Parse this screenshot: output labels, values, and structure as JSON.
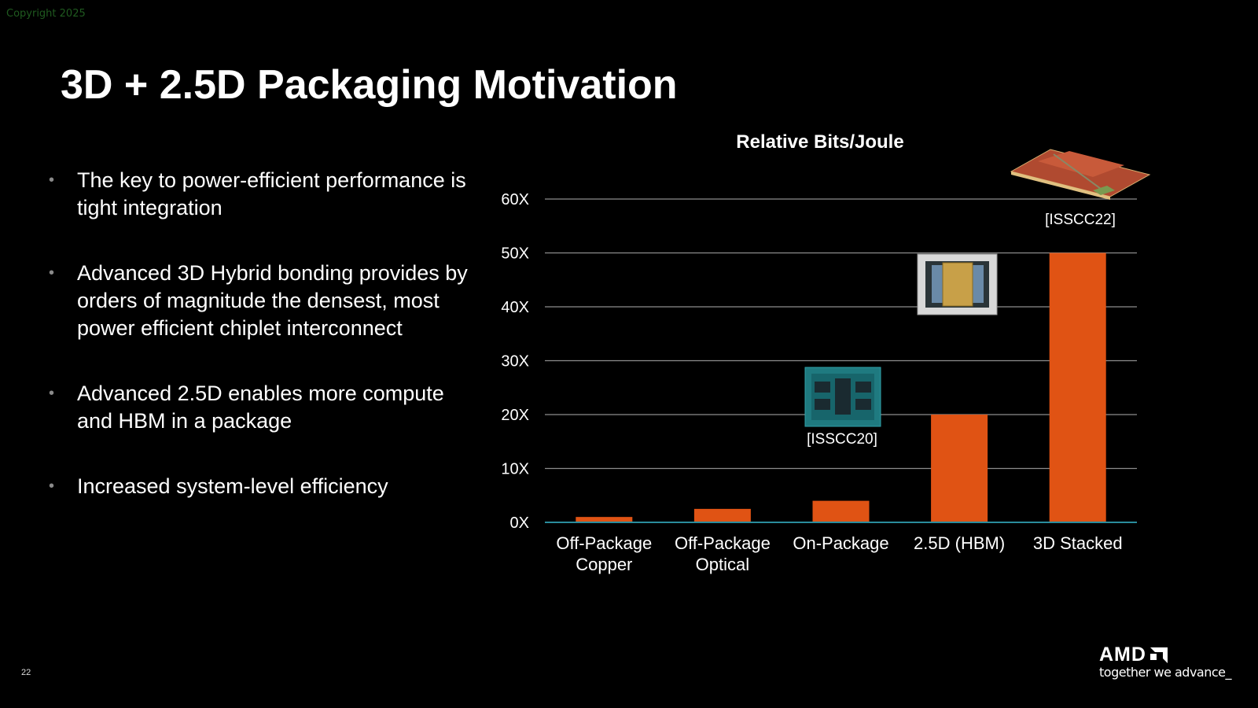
{
  "copyright": "Copyright 2025",
  "title": "3D + 2.5D Packaging Motivation",
  "bullets": [
    "The key to power-efficient performance is tight integration",
    "Advanced 3D Hybrid bonding provides by orders of magnitude the densest, most power efficient chiplet interconnect",
    "Advanced 2.5D enables more compute and HBM in a package",
    "Increased system-level efficiency"
  ],
  "bullet_glyph": "•",
  "page_number": "22",
  "logo": {
    "brand": "AMD",
    "tagline": "together we advance_"
  },
  "colors": {
    "bar": "#e05314",
    "grid": "#8c8c8c",
    "axis": "#2a8c9c",
    "background": "#000000"
  },
  "chart_data": {
    "type": "bar",
    "title": "Relative Bits/Joule",
    "categories": [
      [
        "Off-Package",
        "Copper"
      ],
      [
        "Off-Package",
        "Optical"
      ],
      [
        "On-Package"
      ],
      [
        "2.5D (HBM)"
      ],
      [
        "3D Stacked"
      ]
    ],
    "values": [
      1,
      2.5,
      4,
      20,
      50
    ],
    "ylim": [
      0,
      60
    ],
    "yticks": [
      0,
      10,
      20,
      30,
      40,
      50,
      60
    ],
    "ytick_labels": [
      "0X",
      "10X",
      "20X",
      "30X",
      "40X",
      "50X",
      "60X"
    ],
    "grid": true,
    "xlabel": "",
    "ylabel": "",
    "annotations": [
      {
        "text": "[ISSCC20]",
        "category": "On-Package",
        "image": "chip-on-package"
      },
      {
        "text": "",
        "category": "2.5D (HBM)",
        "image": "chip-2-5d"
      },
      {
        "text": "[ISSCC22]",
        "category": "3D Stacked",
        "image": "chip-3d-stacked"
      }
    ]
  }
}
